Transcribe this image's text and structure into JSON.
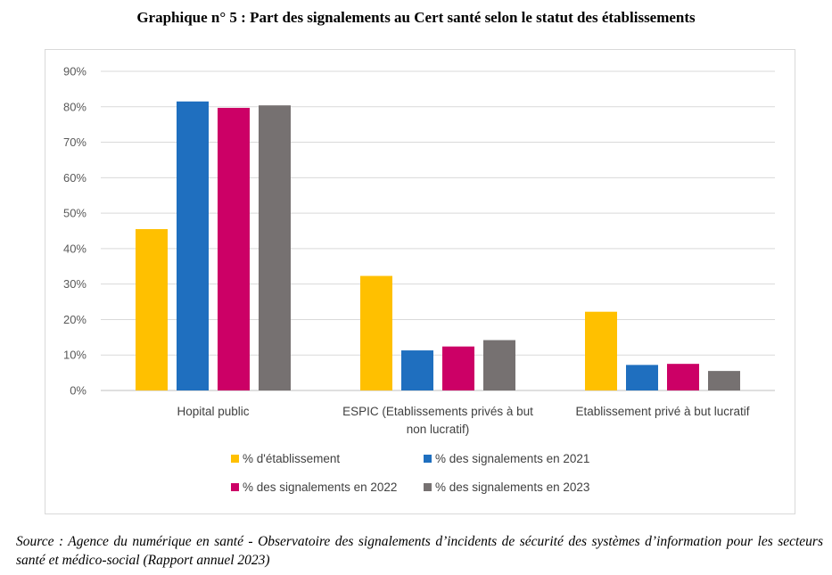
{
  "title": "Graphique n° 5 : Part des signalements au Cert santé selon le statut des établissements",
  "source": "Source : Agence du numérique en santé - Observatoire des signalements d’incidents de sécurité des systèmes d’information pour les secteurs santé et médico-social (Rapport annuel 2023)",
  "chart_data": {
    "type": "bar",
    "categories": [
      [
        "Hopital public"
      ],
      [
        "ESPIC (Etablissements privés à but",
        "non lucratif)"
      ],
      [
        "Etablissement privé à but lucratif"
      ]
    ],
    "series": [
      {
        "name": "% d'établissement",
        "color": "#FFC000",
        "values": [
          45.5,
          32.3,
          22.2
        ]
      },
      {
        "name": "% des signalements en 2021",
        "color": "#1F6FBF",
        "values": [
          81.5,
          11.3,
          7.2
        ]
      },
      {
        "name": "% des signalements en 2022",
        "color": "#CC0066",
        "values": [
          79.7,
          12.4,
          7.5
        ]
      },
      {
        "name": "% des signalements en 2023",
        "color": "#767171",
        "values": [
          80.4,
          14.2,
          5.5
        ]
      }
    ],
    "ylim": [
      0,
      90
    ],
    "yticks": [
      "0%",
      "10%",
      "20%",
      "30%",
      "40%",
      "50%",
      "60%",
      "70%",
      "80%",
      "90%"
    ],
    "grid": true,
    "legend_position": "bottom"
  }
}
